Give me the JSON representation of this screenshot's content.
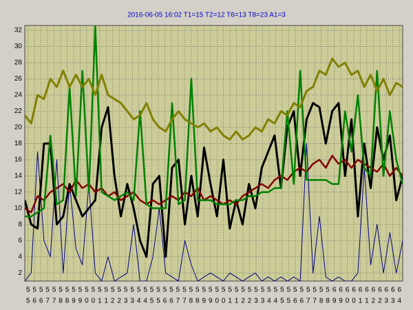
{
  "chart_data": {
    "type": "line",
    "title": "2016-06-05 16:02  T1=15 T2=12 T6=13 T8=23 A1=3",
    "x_labels_top": [
      "5",
      "5",
      "5",
      "5",
      "5",
      "5",
      "5",
      "5",
      "5",
      "5",
      "5",
      "5",
      "5",
      "5",
      "5",
      "5",
      "5",
      "5",
      "5",
      "5",
      "5",
      "5",
      "5",
      "5",
      "5",
      "5",
      "5",
      "5",
      "5",
      "5",
      "5",
      "5",
      "5",
      "5",
      "5",
      "5",
      "5",
      "5",
      "5",
      "5",
      "5",
      "5",
      "5",
      "5",
      "5",
      "5",
      "5",
      "6",
      "6",
      "6",
      "6",
      "6",
      "6",
      "6",
      "6",
      "6",
      "6",
      "6"
    ],
    "x_labels_bottom": [
      "5",
      "6",
      "6",
      "7",
      "7",
      "8",
      "8",
      "9",
      "9",
      "0",
      "0",
      "1",
      "1",
      "2",
      "2",
      "3",
      "3",
      "4",
      "4",
      "5",
      "5",
      "6",
      "6",
      "7",
      "7",
      "8",
      "8",
      "9",
      "9",
      "0",
      "0",
      "1",
      "1",
      "2",
      "2",
      "3",
      "3",
      "4",
      "4",
      "5",
      "5",
      "6",
      "6",
      "7",
      "7",
      "8",
      "8",
      "9",
      "9",
      "0",
      "0",
      "1",
      "1",
      "2",
      "2",
      "3",
      "3",
      "4"
    ],
    "ylim": [
      1,
      32.6
    ],
    "yticks": [
      2,
      4,
      6,
      8,
      10,
      12,
      14,
      16,
      18,
      20,
      22,
      24,
      26,
      28,
      30,
      32
    ],
    "grid": true,
    "series": [
      {
        "color": "#000080",
        "width": 1,
        "values": [
          1,
          2,
          17,
          6,
          4,
          16,
          2,
          13,
          5,
          3,
          13,
          2,
          1,
          4,
          1,
          1.5,
          2,
          8,
          1,
          1,
          4,
          10,
          2,
          1.5,
          1,
          6,
          3,
          1,
          1.5,
          2,
          1.5,
          1,
          2,
          1.5,
          1,
          1.5,
          2,
          1,
          1.5,
          1,
          1.5,
          1,
          1.5,
          1,
          18,
          2,
          9,
          1.5,
          1,
          1.5,
          1,
          1,
          2,
          15,
          3,
          8,
          2,
          7,
          2,
          6
        ]
      },
      {
        "color": "#000000",
        "width": 3,
        "values": [
          11,
          8,
          7.5,
          18,
          18,
          8,
          9,
          13,
          11,
          9,
          10,
          11,
          20,
          22.5,
          14,
          9,
          13,
          10,
          6,
          4,
          13,
          14,
          4,
          15,
          16,
          8,
          14,
          9,
          17.5,
          13,
          9,
          16,
          7.5,
          11,
          8,
          13,
          10,
          15,
          17,
          19,
          12.5,
          20,
          22,
          14,
          21,
          23,
          22.5,
          18,
          22,
          23,
          14,
          21,
          9,
          18,
          12.5,
          20,
          16,
          19,
          11,
          14
        ]
      },
      {
        "color": "#800000",
        "width": 2.5,
        "values": [
          10,
          9.5,
          11.5,
          11,
          12,
          12.5,
          13,
          12,
          13.5,
          12.5,
          13,
          12,
          12.5,
          11.5,
          12,
          11,
          11.5,
          12,
          11,
          10.5,
          11,
          10.5,
          11,
          11.5,
          11,
          12,
          11.5,
          12.5,
          11,
          11.5,
          11,
          10.5,
          11,
          10.5,
          11.5,
          12,
          12.5,
          13,
          12.5,
          13.5,
          14,
          13.5,
          14.5,
          15,
          14.5,
          15.5,
          16,
          15,
          16.5,
          15.5,
          16,
          15,
          16,
          15.5,
          15,
          14.5,
          15.5,
          14,
          15,
          14
        ]
      },
      {
        "color": "#008000",
        "width": 2.5,
        "values": [
          9,
          9,
          9.5,
          10,
          19,
          10.5,
          11,
          25,
          11.5,
          27,
          12,
          32.5,
          12,
          11.5,
          11,
          11.5,
          12,
          11,
          22,
          10.5,
          10,
          10,
          10,
          23,
          10.5,
          11,
          26,
          11,
          11,
          11,
          10.5,
          10.5,
          10.5,
          11,
          11,
          11.5,
          11.5,
          12,
          12,
          12.5,
          12.5,
          22,
          13,
          27,
          13.5,
          13.5,
          13.5,
          13.5,
          13,
          13,
          22,
          17,
          24,
          15,
          14,
          27,
          14,
          22,
          16,
          13
        ]
      },
      {
        "color": "#808000",
        "width": 3,
        "values": [
          21.5,
          20.5,
          24,
          23.5,
          26,
          25,
          27,
          25,
          26.5,
          25,
          26,
          24,
          26.5,
          24,
          23.5,
          23,
          22,
          21,
          21.5,
          23,
          21,
          20,
          19.5,
          21,
          22,
          21,
          20.5,
          20,
          20.5,
          19.5,
          20,
          19,
          18.5,
          19.5,
          18.5,
          19,
          20,
          19.5,
          21,
          20.5,
          22,
          21.5,
          23,
          22.5,
          24.5,
          25,
          27,
          26.5,
          28.5,
          27.5,
          28,
          26.5,
          27,
          25,
          26.5,
          24.5,
          26,
          24,
          25.5,
          25
        ]
      }
    ]
  }
}
